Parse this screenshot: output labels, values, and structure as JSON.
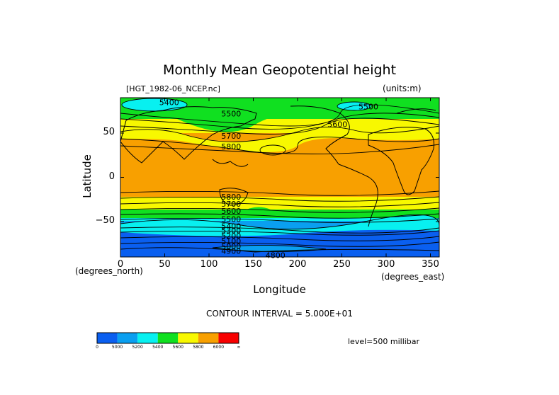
{
  "title": "Monthly Mean Geopotential height",
  "dataset_label": "[HGT_1982-06_NCEP.nc]",
  "units_label": "(units:m)",
  "ylabel": "Latitude",
  "xlabel": "Longitude",
  "x_units_label": "(degrees_east)",
  "y_units_label": "(degrees_north)",
  "contour_interval_text": "CONTOUR INTERVAL = 5.000E+01",
  "level_text": "level=500 millibar",
  "chart_data": {
    "type": "heatmap",
    "title": "Monthly Mean Geopotential height",
    "xlabel": "Longitude",
    "ylabel": "Latitude",
    "xlim": [
      0,
      360
    ],
    "ylim": [
      -90,
      90
    ],
    "x_ticks": [
      0,
      50,
      100,
      150,
      200,
      250,
      300,
      350
    ],
    "y_ticks": [
      50,
      0,
      -50
    ],
    "y_tick_labels": [
      "50",
      "0",
      "−50"
    ],
    "contour_labels": [
      {
        "text": "5400",
        "lon": 55,
        "lat": 85
      },
      {
        "text": "5500",
        "lon": 125,
        "lat": 72
      },
      {
        "text": "5700",
        "lon": 125,
        "lat": 47
      },
      {
        "text": "5800",
        "lon": 125,
        "lat": 35
      },
      {
        "text": "5500",
        "lon": 280,
        "lat": 80
      },
      {
        "text": "5600",
        "lon": 245,
        "lat": 60
      },
      {
        "text": "5800",
        "lon": 125,
        "lat": -22
      },
      {
        "text": "5700",
        "lon": 125,
        "lat": -30
      },
      {
        "text": "5600",
        "lon": 125,
        "lat": -38
      },
      {
        "text": "5500",
        "lon": 125,
        "lat": -47
      },
      {
        "text": "5400",
        "lon": 125,
        "lat": -55
      },
      {
        "text": "5300",
        "lon": 125,
        "lat": -60
      },
      {
        "text": "5200",
        "lon": 125,
        "lat": -66
      },
      {
        "text": "5100",
        "lon": 125,
        "lat": -72
      },
      {
        "text": "5000",
        "lon": 125,
        "lat": -78
      },
      {
        "text": "4900",
        "lon": 125,
        "lat": -83
      },
      {
        "text": "4800",
        "lon": 175,
        "lat": -88
      }
    ],
    "colorbar": {
      "levels": [
        "0",
        "5000",
        "5200",
        "5400",
        "5600",
        "5800",
        "6000",
        "∞"
      ],
      "colors": [
        "#0a5ff0",
        "#0a9ff0",
        "#08f0f0",
        "#10e020",
        "#f8f800",
        "#f8a000",
        "#f80000"
      ]
    }
  }
}
